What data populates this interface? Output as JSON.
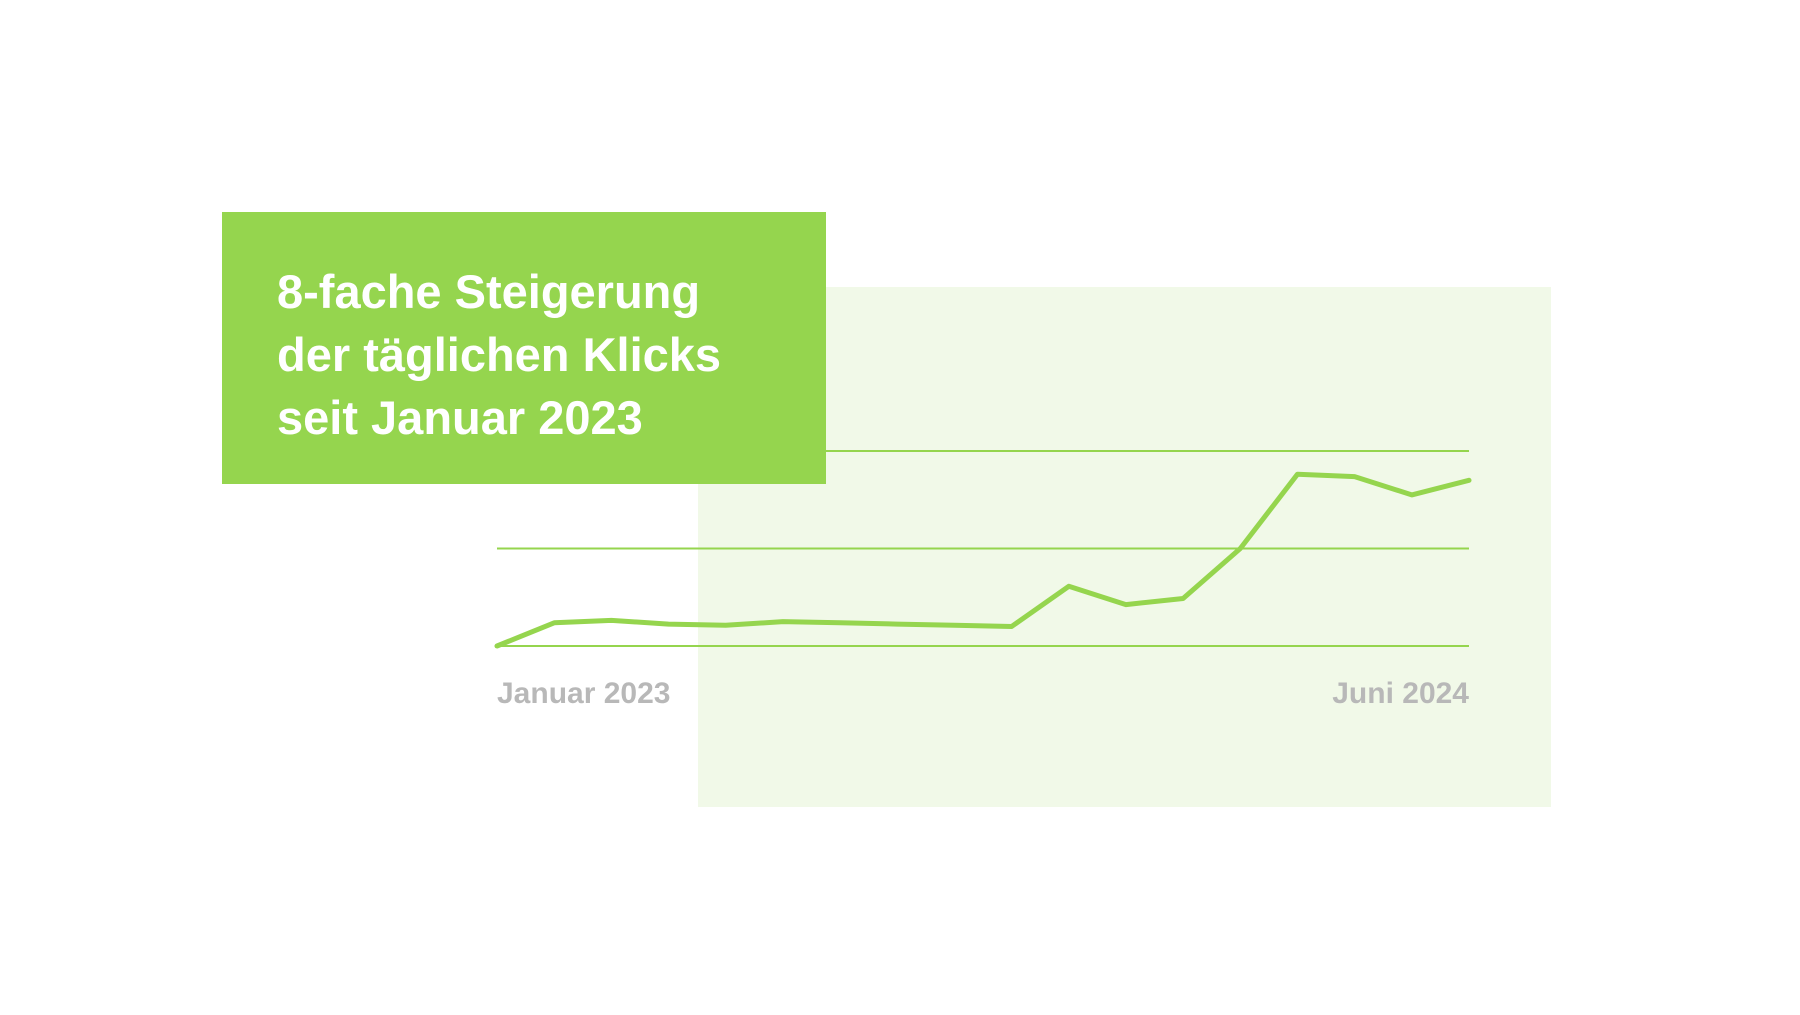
{
  "title": {
    "lines": [
      "8-fache Steigerung",
      "der täglichen Klicks",
      "seit Januar 2023"
    ]
  },
  "colors": {
    "accent": "#95d54e",
    "panel_bg": "#f1f9e8",
    "axis_label": "#b8b8b8"
  },
  "chart_data": {
    "type": "line",
    "title": "8-fache Steigerung der täglichen Klicks seit Januar 2023",
    "xlabel": "",
    "ylabel": "",
    "x_tick_labels": [
      "Januar 2023",
      "Juni 2024"
    ],
    "ylim": [
      0,
      8
    ],
    "grid_values": [
      0,
      4,
      8
    ],
    "grid": true,
    "series": [
      {
        "values": [
          0,
          0.95,
          1.05,
          0.9,
          0.85,
          1.0,
          0.95,
          0.9,
          0.85,
          0.8,
          2.45,
          1.7,
          1.95,
          4.0,
          7.05,
          6.95,
          6.2,
          6.8
        ]
      }
    ]
  }
}
